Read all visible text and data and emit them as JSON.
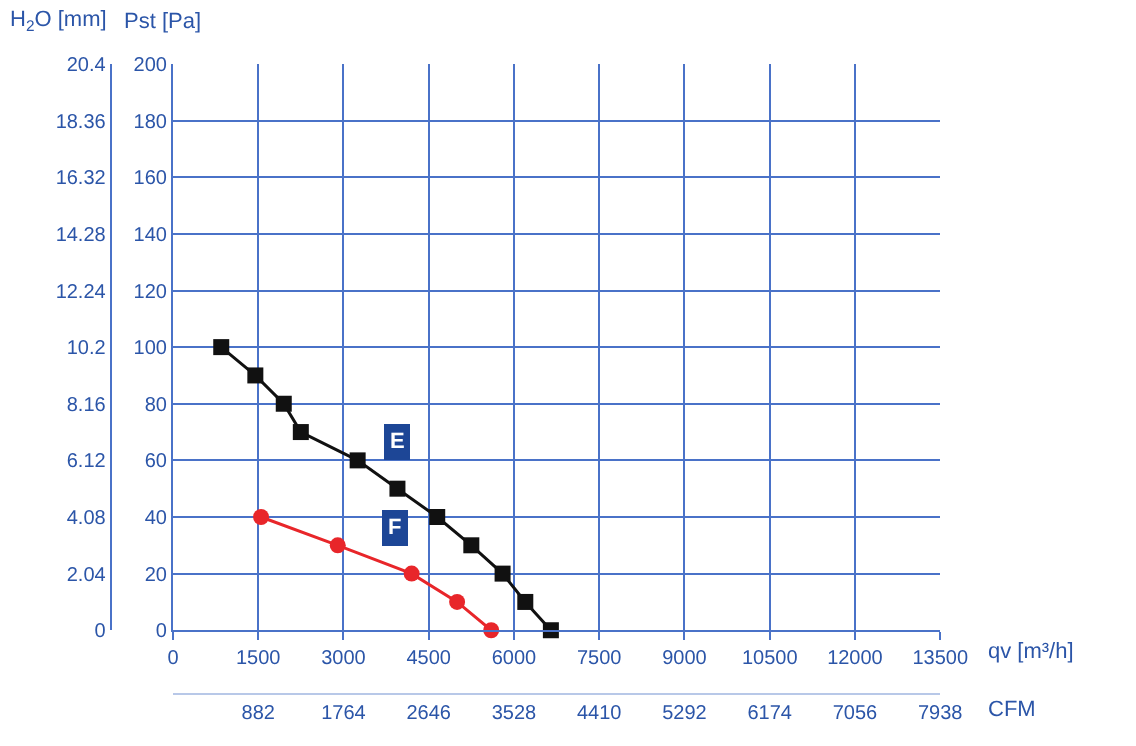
{
  "chart_data": {
    "type": "line",
    "ylabel": "Pst [Pa]",
    "y2label": "H$_{2}$O [mm]",
    "xlabel": "qv [m³/h]",
    "x2label": "CFM",
    "series": [
      {
        "name": "E",
        "color": "#111111",
        "marker": "square",
        "x": [
          850,
          1450,
          1950,
          2250,
          3250,
          3950,
          4650,
          5250,
          5800,
          6200,
          6650
        ],
        "values": [
          100,
          90,
          80,
          70,
          60,
          50,
          40,
          30,
          20,
          10,
          0
        ]
      },
      {
        "name": "F",
        "color": "#e8262a",
        "marker": "circle",
        "x": [
          1550,
          2900,
          4200,
          5000,
          5600
        ],
        "values": [
          40,
          30,
          20,
          10,
          0
        ]
      }
    ],
    "xlim": [
      0,
      13500
    ],
    "xticks": [
      0,
      1500,
      3000,
      4500,
      6000,
      7500,
      9000,
      10500,
      12000,
      13500
    ],
    "x2lim": [
      0,
      7938
    ],
    "x2ticks": [
      882,
      1764,
      2646,
      3528,
      4410,
      5292,
      6174,
      7056,
      7938
    ],
    "ylim": [
      0,
      200
    ],
    "yticks": [
      0,
      20,
      40,
      60,
      80,
      100,
      120,
      140,
      160,
      180,
      200
    ],
    "y2lim": [
      0,
      20.4
    ],
    "y2ticks": [
      0,
      2.04,
      4.08,
      6.12,
      8.16,
      10.2,
      12.24,
      14.28,
      16.32,
      18.36,
      20.4
    ],
    "grid": true,
    "legend": false,
    "line_style": "solid"
  }
}
